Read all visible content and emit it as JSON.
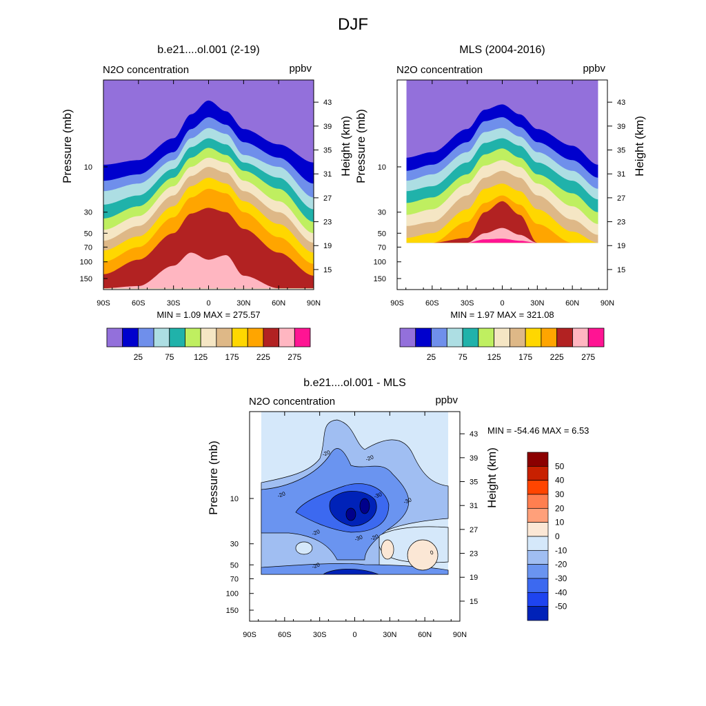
{
  "suptitle": "DJF",
  "colors": {
    "n2o_levels": [
      "#9370DB",
      "#0000CD",
      "#6F8FEB",
      "#ADDEE3",
      "#20B2AA",
      "#BFEF60",
      "#F5E6C4",
      "#DEB887",
      "#FFD700",
      "#FFA500",
      "#B22222",
      "#FFB6C1",
      "#FF1493"
    ],
    "diff_levels": [
      "#00008B",
      "#0022B8",
      "#1E44F0",
      "#3C69F0",
      "#6A94F0",
      "#A0BEF2",
      "#D5E8FA",
      "#FBE7D5",
      "#FFA07A",
      "#FF7F50",
      "#FF4500",
      "#C82000",
      "#8B0000"
    ]
  },
  "chart_data": [
    {
      "type": "contour",
      "id": "model",
      "title": "b.e21....ol.001 (2-19)",
      "left_label": "N2O concentration",
      "right_label": "ppbv",
      "xlabel": "",
      "ylabel": "Pressure (mb)",
      "ylabel_right": "Height (km)",
      "xlim": [
        -90,
        90
      ],
      "x_ticks": [
        "90S",
        "60S",
        "30S",
        "0",
        "30N",
        "60N",
        "90N"
      ],
      "pressure_ticks": [
        "10",
        "30",
        "50",
        "70",
        "100",
        "150"
      ],
      "pressure_values": [
        10,
        30,
        50,
        70,
        100,
        150
      ],
      "ylim_mb": [
        150,
        1.6
      ],
      "height_ticks": [
        "43",
        "39",
        "35",
        "31",
        "27",
        "23",
        "19",
        "15"
      ],
      "height_values": [
        43,
        39,
        35,
        31,
        27,
        23,
        19,
        15
      ],
      "stats": "MIN =   1.09  MAX = 275.57",
      "data_extent_lat": [
        -90,
        90
      ],
      "data_extent_mb": [
        190,
        1.6
      ],
      "levels": [
        25,
        50,
        75,
        100,
        125,
        150,
        175,
        200,
        225,
        250,
        275,
        300
      ],
      "contour_boundaries_mb": {
        "lat": [
          -90,
          -60,
          -30,
          -15,
          0,
          15,
          30,
          60,
          90
        ],
        "levels": [
          [
            9.5,
            8.5,
            5.0,
            2.8,
            2.0,
            2.6,
            4.0,
            5.8,
            9.0
          ],
          [
            14,
            12,
            7.0,
            4.0,
            3.0,
            3.6,
            5.5,
            8.0,
            15
          ],
          [
            18,
            15,
            8.5,
            5.0,
            3.9,
            4.5,
            7.5,
            10,
            21
          ],
          [
            25,
            20,
            10.5,
            6.2,
            5.0,
            5.8,
            9.0,
            13,
            28
          ],
          [
            35,
            26,
            13,
            8.0,
            6.3,
            7.5,
            11,
            17,
            38
          ],
          [
            46,
            33,
            16,
            10,
            8.0,
            9.0,
            14,
            23,
            50
          ],
          [
            60,
            42,
            20,
            12.5,
            10,
            11.5,
            18,
            30,
            63
          ],
          [
            76,
            54,
            26,
            16,
            13,
            15,
            23,
            40,
            80
          ],
          [
            100,
            70,
            34,
            21,
            17,
            19,
            30,
            55,
            105
          ],
          [
            135,
            95,
            50,
            31,
            27,
            30,
            45,
            80,
            140
          ],
          [
            190,
            180,
            110,
            80,
            95,
            85,
            140,
            190,
            190
          ],
          [
            190,
            190,
            190,
            190,
            190,
            190,
            190,
            190,
            190
          ]
        ]
      },
      "colorbar": {
        "labels": [
          "25",
          "75",
          "125",
          "175",
          "225",
          "275"
        ]
      }
    },
    {
      "type": "contour",
      "id": "mls",
      "title": "MLS (2004-2016)",
      "left_label": "N2O concentration",
      "right_label": "ppbv",
      "xlabel": "",
      "ylabel": "Pressure (mb)",
      "ylabel_right": "Height (km)",
      "xlim": [
        -90,
        90
      ],
      "x_ticks": [
        "90S",
        "60S",
        "30S",
        "0",
        "30N",
        "60N",
        "90N"
      ],
      "pressure_ticks": [
        "10",
        "30",
        "50",
        "70",
        "100",
        "150"
      ],
      "pressure_values": [
        10,
        30,
        50,
        70,
        100,
        150
      ],
      "ylim_mb": [
        150,
        1.6
      ],
      "height_ticks": [
        "43",
        "39",
        "35",
        "31",
        "27",
        "23",
        "19",
        "15"
      ],
      "height_values": [
        43,
        39,
        35,
        31,
        27,
        23,
        19,
        15
      ],
      "stats": "MIN =   1.97  MAX = 321.08",
      "data_extent_lat": [
        -82,
        82
      ],
      "data_extent_mb": [
        63,
        1.6
      ],
      "levels": [
        25,
        50,
        75,
        100,
        125,
        150,
        175,
        200,
        225,
        250,
        275,
        300
      ],
      "contour_boundaries_mb": {
        "lat": [
          -82,
          -60,
          -30,
          -15,
          0,
          15,
          30,
          60,
          82
        ],
        "levels": [
          [
            8.0,
            7.0,
            4.0,
            2.5,
            2.2,
            2.8,
            4.0,
            6.0,
            9.5
          ],
          [
            11,
            9.5,
            5.5,
            3.3,
            3.0,
            3.8,
            5.5,
            8.5,
            13
          ],
          [
            14,
            12,
            7.0,
            4.3,
            3.9,
            4.8,
            7.0,
            11,
            17
          ],
          [
            18,
            16,
            9.0,
            5.6,
            5.0,
            6.0,
            9.0,
            14,
            22
          ],
          [
            24,
            21,
            12,
            7.4,
            6.4,
            8.0,
            12,
            19,
            30
          ],
          [
            32,
            28,
            15,
            9.7,
            8.5,
            10,
            15,
            26,
            40
          ],
          [
            42,
            38,
            20,
            13,
            11,
            13,
            20,
            36,
            52
          ],
          [
            56,
            50,
            28,
            17,
            15,
            18,
            28,
            48,
            63
          ],
          [
            63,
            63,
            38,
            24,
            20,
            25,
            40,
            63,
            63
          ],
          [
            63,
            63,
            56,
            30,
            23,
            32,
            63,
            63,
            63
          ],
          [
            63,
            63,
            63,
            50,
            44,
            52,
            63,
            63,
            63
          ],
          [
            63,
            63,
            63,
            58,
            57,
            60,
            63,
            63,
            63
          ]
        ]
      },
      "colorbar": {
        "labels": [
          "25",
          "75",
          "125",
          "175",
          "225",
          "275"
        ]
      }
    },
    {
      "type": "contour",
      "id": "diff",
      "title": "b.e21....ol.001 - MLS",
      "left_label": "N2O concentration",
      "right_label": "ppbv",
      "xlabel": "",
      "ylabel": "Pressure (mb)",
      "ylabel_right": "Height (km)",
      "xlim": [
        -90,
        90
      ],
      "x_ticks": [
        "90S",
        "60S",
        "30S",
        "0",
        "30N",
        "60N",
        "90N"
      ],
      "pressure_ticks": [
        "10",
        "30",
        "50",
        "70",
        "100",
        "150"
      ],
      "pressure_values": [
        10,
        30,
        50,
        70,
        100,
        150
      ],
      "ylim_mb": [
        150,
        1.6
      ],
      "height_ticks": [
        "43",
        "39",
        "35",
        "31",
        "27",
        "23",
        "19",
        "15"
      ],
      "height_values": [
        43,
        39,
        35,
        31,
        27,
        23,
        19,
        15
      ],
      "stats": "MIN = -54.46  MAX =   6.53",
      "data_extent_lat": [
        -80,
        80
      ],
      "data_extent_mb": [
        63,
        1.6
      ],
      "levels": [
        -50,
        -40,
        -30,
        -20,
        -10,
        0,
        10,
        20,
        30,
        40,
        50
      ],
      "contour_line_labels": [
        "-20",
        "-20",
        "-20",
        "-20",
        "-20",
        "-20",
        "-30",
        "-30",
        "-30",
        "0"
      ],
      "colorbar": {
        "labels": [
          "50",
          "40",
          "30",
          "20",
          "10",
          "0",
          "-10",
          "-20",
          "-30",
          "-40",
          "-50"
        ]
      }
    }
  ]
}
